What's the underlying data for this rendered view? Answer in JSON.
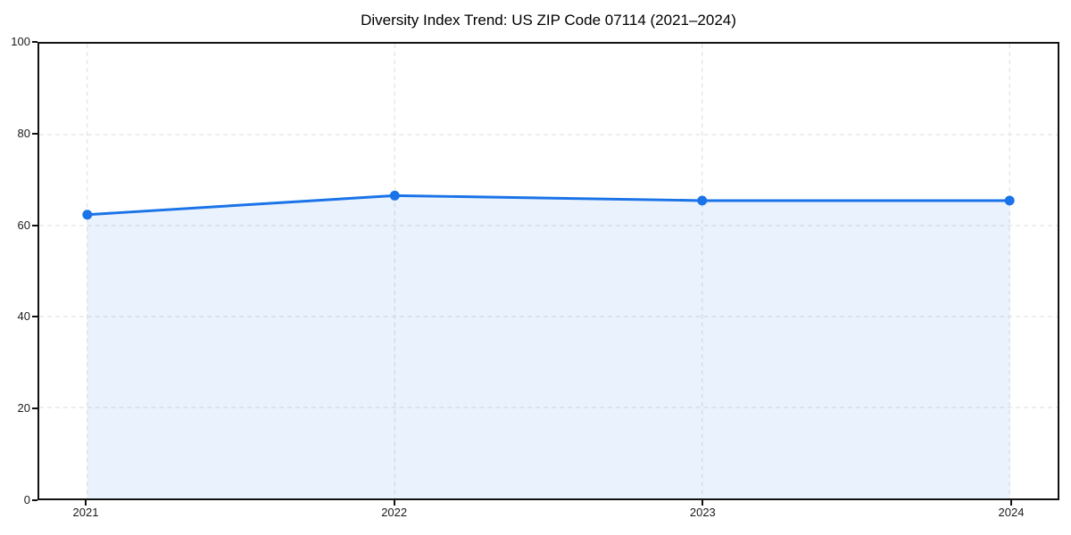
{
  "chart_data": {
    "type": "area",
    "title": "Diversity Index Trend: US ZIP Code 07114 (2021–2024)",
    "x": [
      "2021",
      "2022",
      "2023",
      "2024"
    ],
    "values": [
      62.4,
      66.6,
      65.5,
      65.5
    ],
    "series_name": "Diversity Index",
    "xlabel": "",
    "ylabel": "",
    "ylim": [
      0,
      100
    ],
    "yticks": [
      0,
      20,
      40,
      60,
      80,
      100
    ],
    "ytick_labels": [
      "0",
      "20",
      "40",
      "60",
      "80",
      "100"
    ],
    "grid": true,
    "grid_style": "dashed",
    "legend_position": "none",
    "colors": {
      "line": "#1a73e8",
      "marker": "#1a73e8",
      "fill": "#1a73e8",
      "fill_opacity": 0.09,
      "grid": "#dcdcdc",
      "spine": "#111111",
      "tick_label": "#1a1a1a",
      "title": "#000000",
      "background": "#ffffff"
    }
  }
}
